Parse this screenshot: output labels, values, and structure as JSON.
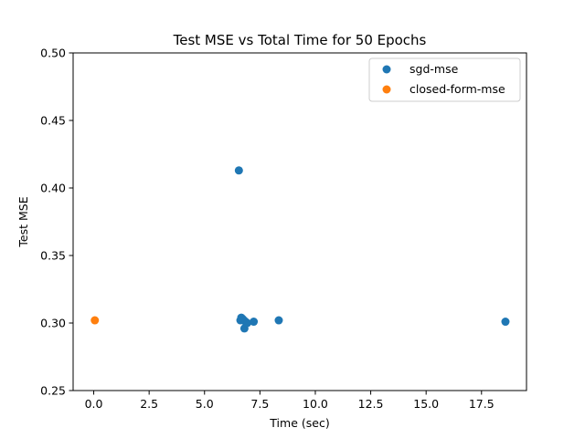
{
  "chart_data": {
    "type": "scatter",
    "title": "Test MSE vs Total Time for 50 Epochs",
    "xlabel": "Time (sec)",
    "ylabel": "Test MSE",
    "xlim": [
      -0.93,
      19.53
    ],
    "ylim": [
      0.25,
      0.5
    ],
    "xticks": [
      0.0,
      2.5,
      5.0,
      7.5,
      10.0,
      12.5,
      15.0,
      17.5
    ],
    "xtick_labels": [
      "0.0",
      "2.5",
      "5.0",
      "7.5",
      "10.0",
      "12.5",
      "15.0",
      "17.5"
    ],
    "yticks": [
      0.25,
      0.3,
      0.35,
      0.4,
      0.45,
      0.5
    ],
    "ytick_labels": [
      "0.25",
      "0.30",
      "0.35",
      "0.40",
      "0.45",
      "0.50"
    ],
    "grid": false,
    "legend_position": "top-right",
    "series": [
      {
        "name": "sgd-mse",
        "color": "#1f77b4",
        "points": [
          {
            "x": 6.55,
            "y": 0.413
          },
          {
            "x": 6.62,
            "y": 0.302
          },
          {
            "x": 6.66,
            "y": 0.304
          },
          {
            "x": 6.72,
            "y": 0.303
          },
          {
            "x": 6.78,
            "y": 0.302
          },
          {
            "x": 6.8,
            "y": 0.296
          },
          {
            "x": 6.85,
            "y": 0.301
          },
          {
            "x": 6.93,
            "y": 0.3
          },
          {
            "x": 7.22,
            "y": 0.301
          },
          {
            "x": 8.35,
            "y": 0.302
          },
          {
            "x": 18.58,
            "y": 0.301
          }
        ]
      },
      {
        "name": "closed-form-mse",
        "color": "#ff7f0e",
        "points": [
          {
            "x": 0.05,
            "y": 0.302
          }
        ]
      }
    ]
  }
}
